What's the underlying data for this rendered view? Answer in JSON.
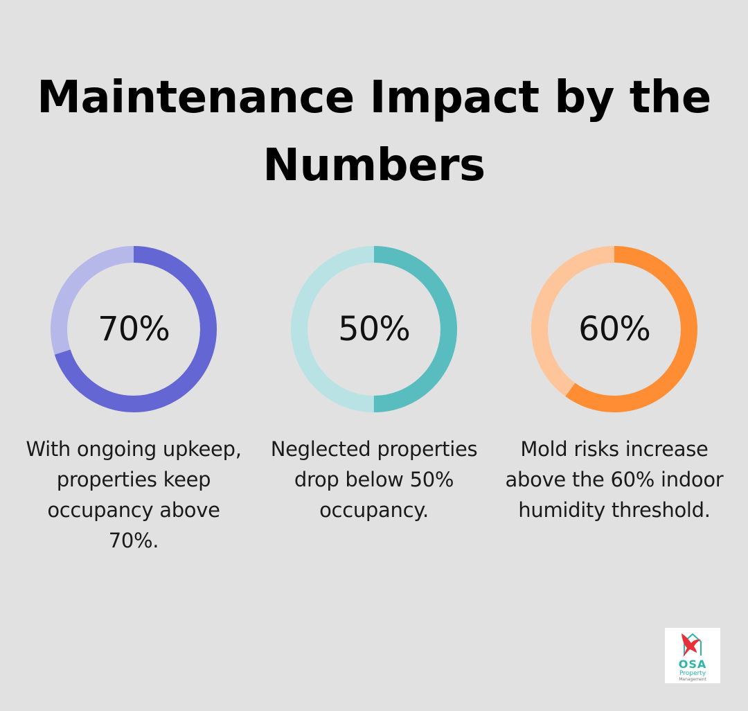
{
  "title": "Maintenance Impact by the Numbers",
  "chart_data": [
    {
      "type": "pie",
      "value": 70,
      "label": "70%",
      "description": "With ongoing upkeep, properties keep occupancy above 70%.",
      "color_main": "#6466d4",
      "color_track": "#b7b8ea"
    },
    {
      "type": "pie",
      "value": 50,
      "label": "50%",
      "description": "Neglected properties drop below 50% occupancy.",
      "color_main": "#59bcbf",
      "color_track": "#b8e2e3"
    },
    {
      "type": "pie",
      "value": 60,
      "label": "60%",
      "description": "Mold risks increase above the 60% indoor humidity threshold.",
      "color_main": "#fe8d34",
      "color_track": "#fec59b"
    }
  ],
  "logo": {
    "name": "OSA",
    "line1": "Property",
    "line2": "Management",
    "bird_color": "#e8303a",
    "house_color": "#2bb7a4"
  }
}
